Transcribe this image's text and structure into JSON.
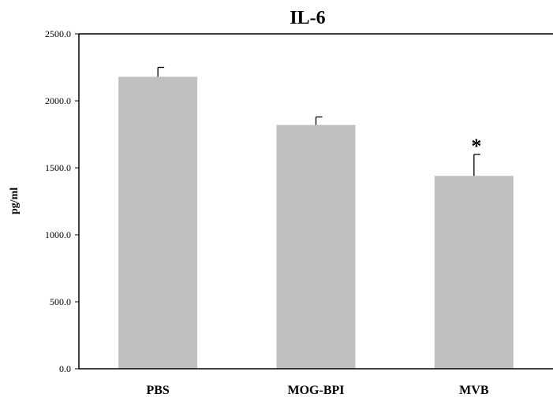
{
  "chart_data": {
    "type": "bar",
    "title": "IL-6",
    "xlabel": "",
    "ylabel": "pg/ml",
    "categories": [
      "PBS",
      "MOG-BPI",
      "MVB"
    ],
    "values": [
      2180,
      1820,
      1440
    ],
    "error_plus": [
      70,
      60,
      160
    ],
    "annotations": [
      "",
      "",
      "*"
    ],
    "ylim": [
      0,
      2500
    ],
    "yticks": [
      0,
      500,
      1000,
      1500,
      2000,
      2500
    ],
    "ytick_labels": [
      "0.0",
      "500.0",
      "1000.0",
      "1500.0",
      "2000.0",
      "2500.0"
    ],
    "grid": false,
    "legend": "none",
    "colors": {
      "bar": "#c0c0c0",
      "axis": "#000000",
      "error": "#000000",
      "background": "#ffffff"
    }
  }
}
